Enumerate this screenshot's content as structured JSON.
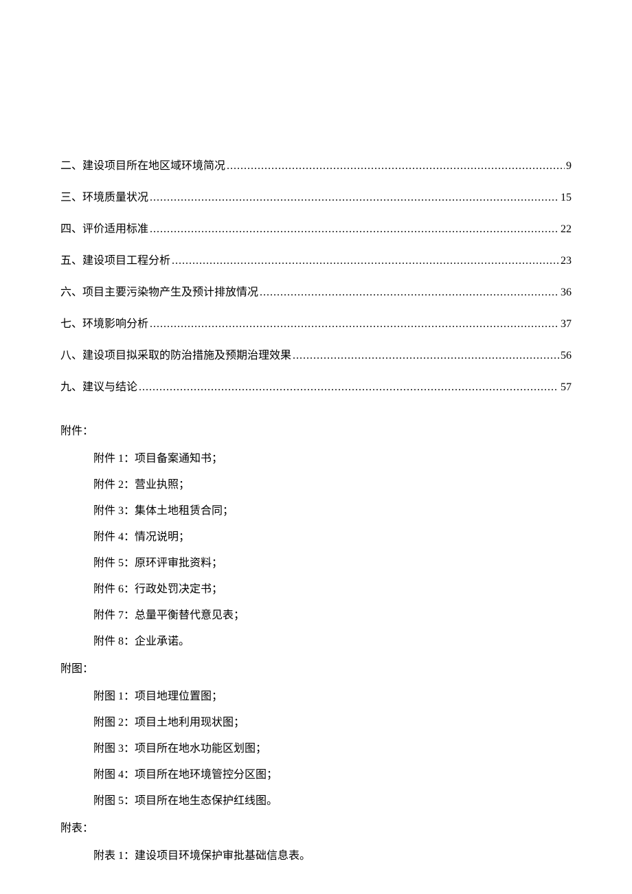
{
  "toc": {
    "entries": [
      {
        "label": "二、建设项目所在地区域环境简况",
        "page": "9"
      },
      {
        "label": "三、环境质量状况",
        "page": "15"
      },
      {
        "label": "四、评价适用标准",
        "page": "22"
      },
      {
        "label": "五、建设项目工程分析",
        "page": "23"
      },
      {
        "label": "六、项目主要污染物产生及预计排放情况",
        "page": "36"
      },
      {
        "label": "七、环境影响分析",
        "page": "37"
      },
      {
        "label": "八、建设项目拟采取的防治措施及预期治理效果",
        "page": "56"
      },
      {
        "label": "九、建议与结论",
        "page": "57"
      }
    ]
  },
  "attachments": {
    "fujian_heading": "附件：",
    "fujian_items": [
      "附件 1：项目备案通知书；",
      "附件 2：营业执照；",
      "附件 3：集体土地租赁合同；",
      "附件 4：情况说明；",
      "附件 5：原环评审批资料；",
      "附件 6：行政处罚决定书；",
      "附件 7：总量平衡替代意见表；",
      "附件 8：企业承诺。"
    ],
    "futu_heading": "附图：",
    "futu_items": [
      "附图 1：项目地理位置图；",
      "附图 2：项目土地利用现状图；",
      "附图 3：项目所在地水功能区划图；",
      "附图 4：项目所在地环境管控分区图；",
      "附图 5：项目所在地生态保护红线图。"
    ],
    "fubiao_heading": "附表：",
    "fubiao_items": [
      "附表 1：建设项目环境保护审批基础信息表。"
    ]
  },
  "style": {
    "body_font_size": 16,
    "body_color": "#000000",
    "background_color": "#ffffff",
    "toc_line_spacing": 22,
    "attachment_indent": 48,
    "attachment_line_spacing": 14
  }
}
